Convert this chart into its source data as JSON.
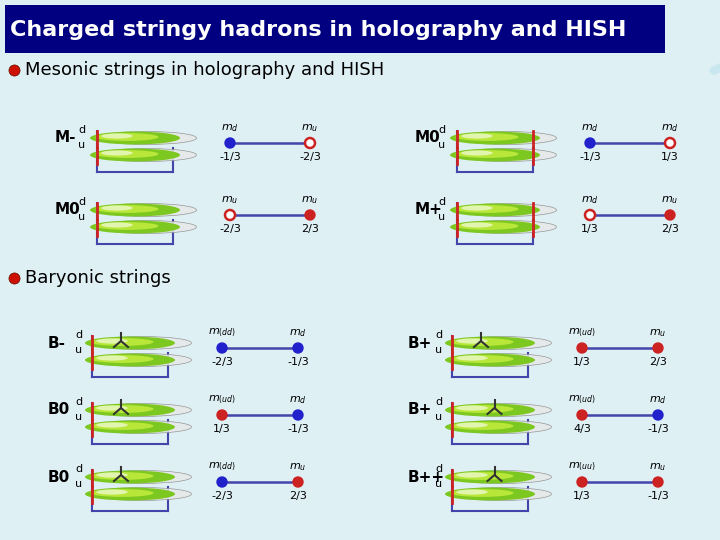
{
  "title": "Charged stringy hadrons in holography and HISH",
  "title_bg": "#000080",
  "title_color": "#ffffff",
  "bg_color": "#dff0f5",
  "section1": "Mesonic strings in holography and HISH",
  "section2": "Baryonic strings",
  "bullet_color": "#cc1100",
  "mesons": [
    {
      "label": "M-",
      "left_lbl": "d",
      "right_lbl": "d",
      "left_sub": "d",
      "right_sub": "u",
      "left_charge": "-1/3",
      "right_charge": "-2/3",
      "left_filled": true,
      "right_filled": false,
      "left_color": "#2222cc",
      "right_color": "#cc2222",
      "has_right_pin": false
    },
    {
      "label": "M0",
      "left_lbl": "d",
      "right_lbl": "d",
      "left_sub": "d",
      "right_sub": "d",
      "left_charge": "-1/3",
      "right_charge": "1/3",
      "left_filled": true,
      "right_filled": false,
      "left_color": "#2222cc",
      "right_color": "#cc2222",
      "has_right_pin": true
    },
    {
      "label": "M0",
      "left_lbl": "u",
      "right_lbl": "u",
      "left_sub": "u",
      "right_sub": "u",
      "left_charge": "-2/3",
      "right_charge": "2/3",
      "left_filled": false,
      "right_filled": true,
      "left_color": "#cc2222",
      "right_color": "#cc2222",
      "has_right_pin": false
    },
    {
      "label": "M+",
      "left_lbl": "d",
      "right_lbl": "u",
      "left_sub": "d",
      "right_sub": "u",
      "left_charge": "1/3",
      "right_charge": "2/3",
      "left_filled": false,
      "right_filled": true,
      "left_color": "#cc2222",
      "right_color": "#cc2222",
      "has_right_pin": true
    }
  ],
  "baryons": [
    {
      "label": "B-",
      "left_sub": "(dd)",
      "right_sub": "d",
      "left_charge": "-2/3",
      "right_charge": "-1/3",
      "left_filled": true,
      "right_filled": true,
      "left_color": "#2222cc",
      "right_color": "#2222cc",
      "has_vertex": true,
      "vertex_side": "left"
    },
    {
      "label": "B+",
      "left_sub": "(ud)",
      "right_sub": "u",
      "left_charge": "1/3",
      "right_charge": "2/3",
      "left_filled": true,
      "right_filled": true,
      "left_color": "#cc2222",
      "right_color": "#cc2222",
      "has_vertex": true,
      "vertex_side": "left"
    },
    {
      "label": "B0",
      "left_sub": "(ud)",
      "right_sub": "d",
      "left_charge": "1/3",
      "right_charge": "-1/3",
      "left_filled": true,
      "right_filled": true,
      "left_color": "#cc2222",
      "right_color": "#2222cc",
      "has_vertex": true,
      "vertex_side": "left"
    },
    {
      "label": "B+",
      "left_sub": "(ud)",
      "right_sub": "d",
      "left_charge": "4/3",
      "right_charge": "-1/3",
      "left_filled": true,
      "right_filled": true,
      "left_color": "#cc2222",
      "right_color": "#2222cc",
      "has_vertex": true,
      "vertex_side": "right"
    },
    {
      "label": "B0",
      "left_sub": "(dd)",
      "right_sub": "u",
      "left_charge": "-2/3",
      "right_charge": "2/3",
      "left_filled": true,
      "right_filled": true,
      "left_color": "#2222cc",
      "right_color": "#cc2222",
      "has_vertex": true,
      "vertex_side": "left"
    },
    {
      "label": "B++",
      "left_sub": "(uu)",
      "right_sub": "u",
      "left_charge": "1/3",
      "right_charge": "-1/3",
      "left_filled": true,
      "right_filled": true,
      "left_color": "#cc2222",
      "right_color": "#cc2222",
      "has_vertex": true,
      "vertex_side": "right"
    }
  ]
}
